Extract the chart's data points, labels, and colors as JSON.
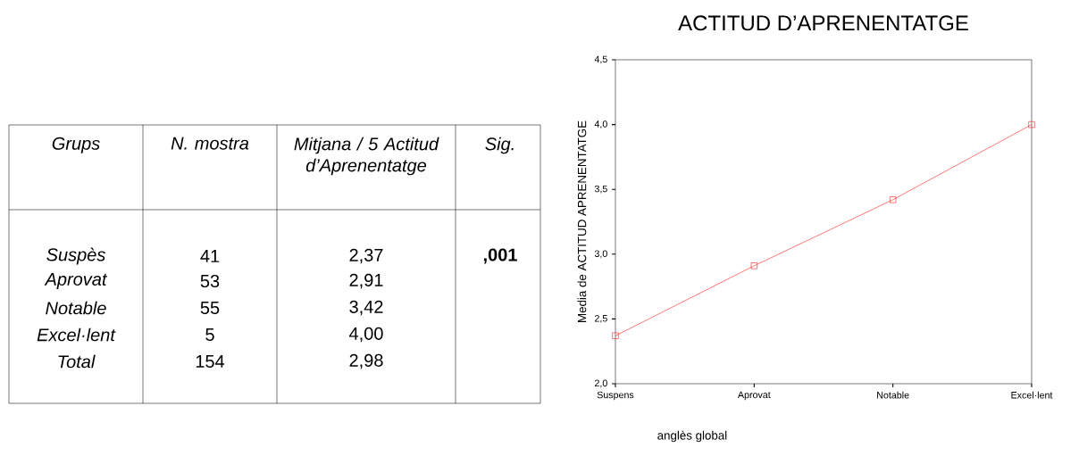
{
  "chart_data": [
    {
      "type": "other",
      "annotations": [
        "Grups",
        "N. mostra",
        "Mitjana / 5 Actitud d’Aprenentatge",
        "Sig.",
        "Suspès",
        "41",
        "2,37",
        "Aprovat",
        "53",
        "2,91",
        "Notable",
        "55",
        "3,42",
        "Excel·lent",
        "5",
        "4,00",
        "Total",
        "154",
        "2,98",
        ",001"
      ]
    },
    {
      "type": "line",
      "title": "ACTITUD D’APRENENTATGE",
      "xlabel": "anglès global",
      "ylabel": "Media de ACTITUD APRENENTATGE",
      "categories": [
        "Suspens",
        "Aprovat",
        "Notable",
        "Excel·lent"
      ],
      "values": [
        2.37,
        2.91,
        3.42,
        4.0
      ],
      "color": "#ff0000",
      "marker": "square",
      "grid": false,
      "ylim": [
        2,
        4.5
      ],
      "yticks": [
        {
          "value": 2,
          "label": "2,0"
        },
        {
          "value": 2.5,
          "label": "2,5"
        },
        {
          "value": 3,
          "label": "3,0"
        },
        {
          "value": 3.5,
          "label": "3,5"
        },
        {
          "value": 4,
          "label": "4,0"
        },
        {
          "value": 4.5,
          "label": "4,5"
        }
      ]
    }
  ]
}
